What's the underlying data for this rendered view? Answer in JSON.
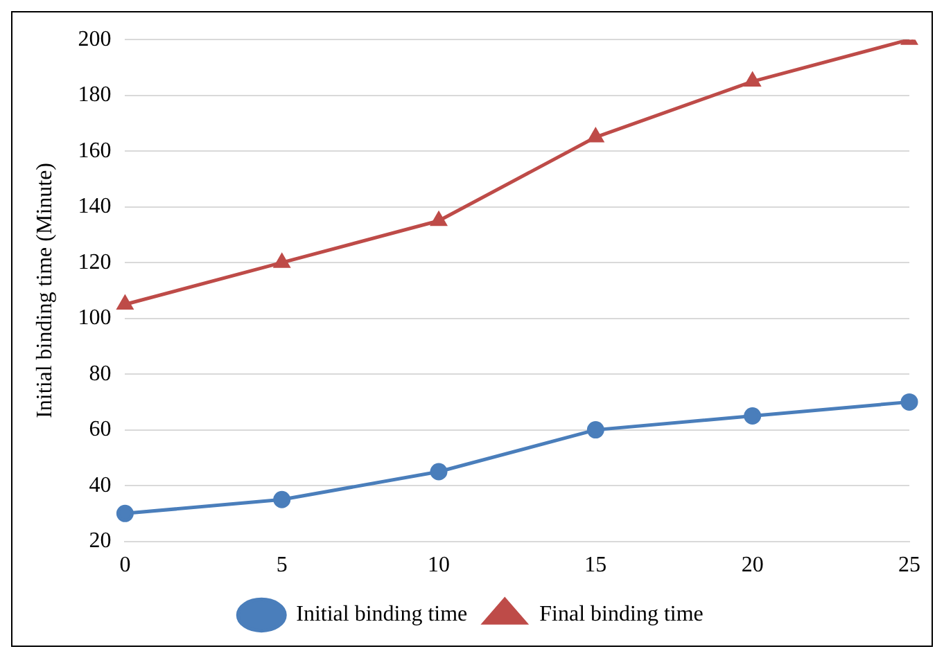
{
  "chart_data": {
    "type": "line",
    "ylabel": "Initial binding time (Minute)",
    "categories": [
      "0",
      "5",
      "10",
      "15",
      "20",
      "25"
    ],
    "series": [
      {
        "name": "Initial binding time",
        "color": "#4a7ebb",
        "marker": "circle",
        "values": [
          30,
          35,
          45,
          60,
          65,
          70
        ]
      },
      {
        "name": "Final binding time",
        "color": "#be4b48",
        "marker": "triangle",
        "values": [
          105,
          120,
          135,
          165,
          185,
          200
        ]
      }
    ],
    "ylim": [
      20,
      200
    ],
    "yticks": [
      20,
      40,
      60,
      80,
      100,
      120,
      140,
      160,
      180,
      200
    ],
    "grid": "y",
    "legend": "bottom",
    "line_style": "solid"
  }
}
